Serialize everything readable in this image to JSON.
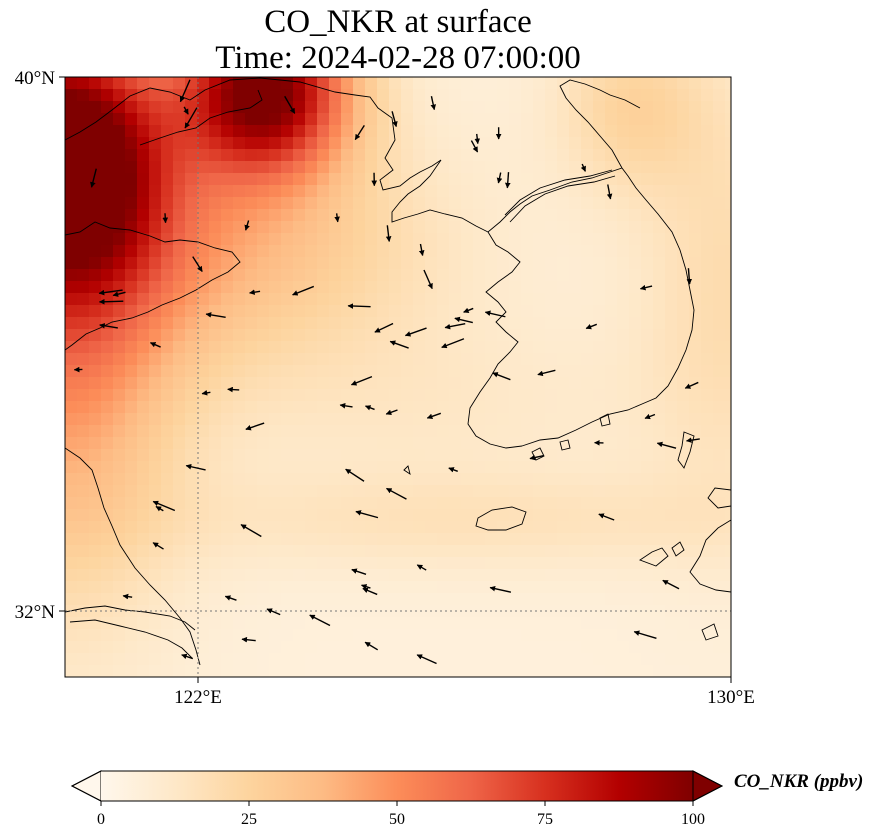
{
  "title": {
    "line1": "CO_NKR at surface",
    "line2": "Time: 2024-02-28 07:00:00"
  },
  "map": {
    "lon_range": [
      120,
      130
    ],
    "lat_range": [
      31,
      40
    ],
    "lon_ticks": [
      {
        "value": 122,
        "label": "122°E"
      },
      {
        "value": 130,
        "label": "130°E"
      }
    ],
    "lat_ticks": [
      {
        "value": 40,
        "label": "40°N"
      },
      {
        "value": 32,
        "label": "32°N"
      }
    ],
    "gridlines": {
      "lon": [
        122
      ],
      "lat": [
        32
      ],
      "style": "dotted"
    },
    "field_variable": "CO_NKR",
    "field_units": "ppbv",
    "colormap": "OrRd",
    "high_concentration_regions": [
      "north-west corner (Beijing–Tianjin)",
      "west coast of Yellow Sea"
    ],
    "features": [
      "coastlines",
      "Korean peninsula",
      "Jeju island",
      "Shandong peninsula",
      "Yangtze estuary",
      "Tsushima islands"
    ],
    "wind_vectors": "shown"
  },
  "colorbar": {
    "label": "CO_NKR (ppbv)",
    "range": [
      0,
      100
    ],
    "ticks": [
      {
        "value": 0,
        "label": "0"
      },
      {
        "value": 25,
        "label": "25"
      },
      {
        "value": 50,
        "label": "50"
      },
      {
        "value": 75,
        "label": "75"
      },
      {
        "value": 100,
        "label": "100"
      }
    ],
    "extend": "both",
    "colors": [
      "#fff7ec",
      "#fee8c8",
      "#fdd49e",
      "#fdbb84",
      "#fc8d59",
      "#ef6548",
      "#d7301f",
      "#b30000",
      "#7f0000"
    ]
  }
}
